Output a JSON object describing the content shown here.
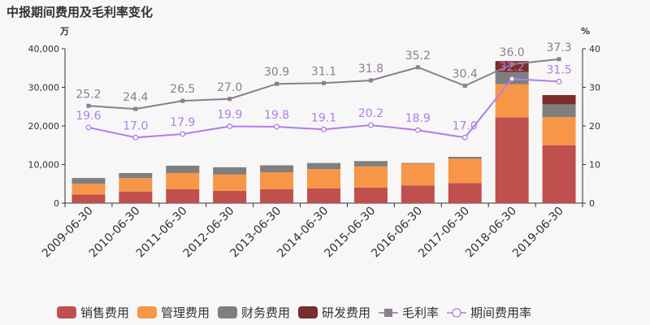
{
  "chart_data": {
    "type": "bar",
    "title": "中报期间费用及毛利率变化",
    "left_unit": "万",
    "right_unit": "%",
    "categories": [
      "2009-06-30",
      "2010-06-30",
      "2011-06-30",
      "2012-06-30",
      "2013-06-30",
      "2014-06-30",
      "2015-06-30",
      "2016-06-30",
      "2017-06-30",
      "2018-06-30",
      "2019-06-30"
    ],
    "y_left": {
      "min": 0,
      "max": 40000,
      "ticks": [
        "0",
        "10,000",
        "20,000",
        "30,000",
        "40,000"
      ]
    },
    "y_right": {
      "min": 0,
      "max": 40,
      "ticks": [
        "0",
        "10",
        "20",
        "30",
        "40"
      ]
    },
    "stacked_series": [
      {
        "name": "销售费用",
        "color": "#c0504d",
        "values": [
          2200,
          3000,
          3600,
          3200,
          3600,
          3800,
          4000,
          4600,
          5200,
          22200,
          15000
        ]
      },
      {
        "name": "管理费用",
        "color": "#f79646",
        "values": [
          2800,
          3500,
          4200,
          4200,
          4400,
          5000,
          5500,
          5600,
          6300,
          8600,
          7300
        ]
      },
      {
        "name": "财务费用",
        "color": "#7f7f7f",
        "values": [
          1500,
          1300,
          1900,
          1900,
          1800,
          1600,
          1400,
          200,
          500,
          3200,
          3300
        ]
      },
      {
        "name": "研发费用",
        "color": "#7b2c2c",
        "values": [
          0,
          0,
          0,
          0,
          0,
          0,
          0,
          0,
          0,
          2800,
          2400
        ]
      }
    ],
    "line_series": [
      {
        "name": "毛利率",
        "color": "#8c7e8e",
        "marker": "square",
        "values": [
          25.2,
          24.4,
          26.5,
          27.0,
          30.9,
          31.1,
          31.8,
          35.2,
          30.4,
          36.0,
          37.3
        ],
        "labels": [
          "25.2",
          "24.4",
          "26.5",
          "27.0",
          "30.9",
          "31.1",
          "31.8",
          "35.2",
          "30.4",
          "36.0",
          "37.3"
        ]
      },
      {
        "name": "期间费用率",
        "color": "#b07ee6",
        "marker": "circle",
        "values": [
          19.6,
          17.0,
          17.9,
          19.9,
          19.8,
          19.1,
          20.2,
          18.9,
          17.0,
          32.2,
          31.5
        ],
        "labels": [
          "19.6",
          "17.0",
          "17.9",
          "19.9",
          "19.8",
          "19.1",
          "20.2",
          "18.9",
          "17.0",
          "32.2",
          "31.5"
        ]
      }
    ],
    "grid": false,
    "legend_position": "bottom"
  }
}
